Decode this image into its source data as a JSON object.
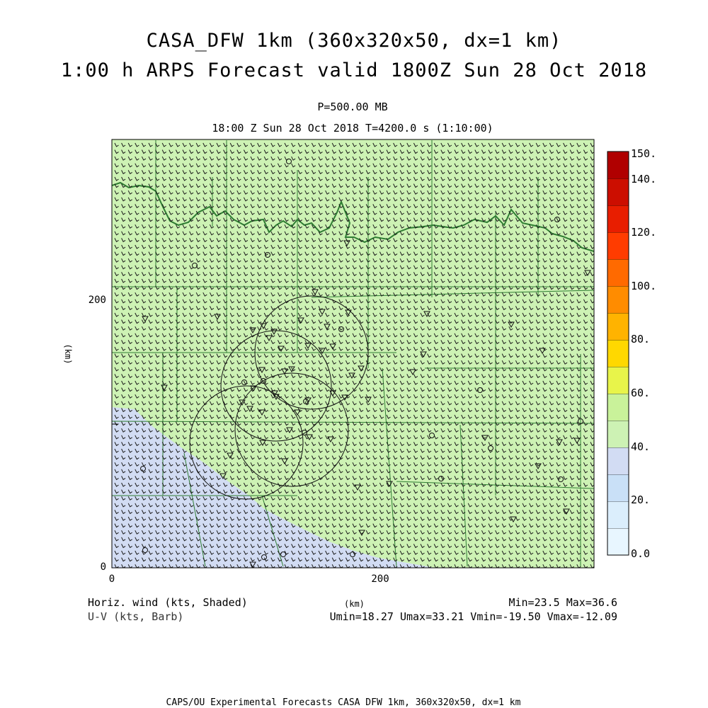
{
  "header": {
    "title_line1": "CASA_DFW 1km (360x320x50, dx=1 km)",
    "title_line2": "1:00 h ARPS Forecast valid 1800Z Sun 28 Oct 2018",
    "level": "P=500.00 MB",
    "time_line": "18:00 Z Sun 28 Oct 2018    T=4200.0 s (1:10:00)"
  },
  "map": {
    "x_axis": {
      "label": "(km)",
      "ticks": [
        "0",
        "200"
      ],
      "range_km": [
        0,
        360
      ]
    },
    "y_axis": {
      "label": "(km)",
      "ticks": [
        "0",
        "200"
      ],
      "range_km": [
        0,
        320
      ]
    },
    "field_colors": {
      "low_band": "#d2dcf3",
      "high_band": "#cdf2b4",
      "boundaries": "#2e7d32",
      "barbs": "#1a1a1a"
    },
    "radar_rings": 4
  },
  "colorbar": {
    "labels": [
      "150.",
      "140.",
      "120.",
      "100.",
      "80.",
      "60.",
      "40.",
      "20.",
      "0.0"
    ],
    "bands": [
      "#e8f6ff",
      "#dbeefc",
      "#c9e0f7",
      "#d2dcf3",
      "#cdf2b4",
      "#c9f29a",
      "#e8f44a",
      "#ffd800",
      "#ffb300",
      "#ff8c00",
      "#ff6a00",
      "#ff3c00",
      "#e81e00",
      "#cc0e00",
      "#b00000"
    ]
  },
  "footer": {
    "left1": "Horiz. wind (kts, Shaded)",
    "left2": "U-V (kts, Barb)",
    "center_unit": "(km)",
    "right1": "Min=23.5 Max=36.6",
    "right2": "Umin=18.27 Umax=33.21 Vmin=-19.50 Vmax=-12.09",
    "bottom": "CAPS/OU Experimental Forecasts  CASA DFW 1km, 360x320x50, dx=1 km"
  }
}
